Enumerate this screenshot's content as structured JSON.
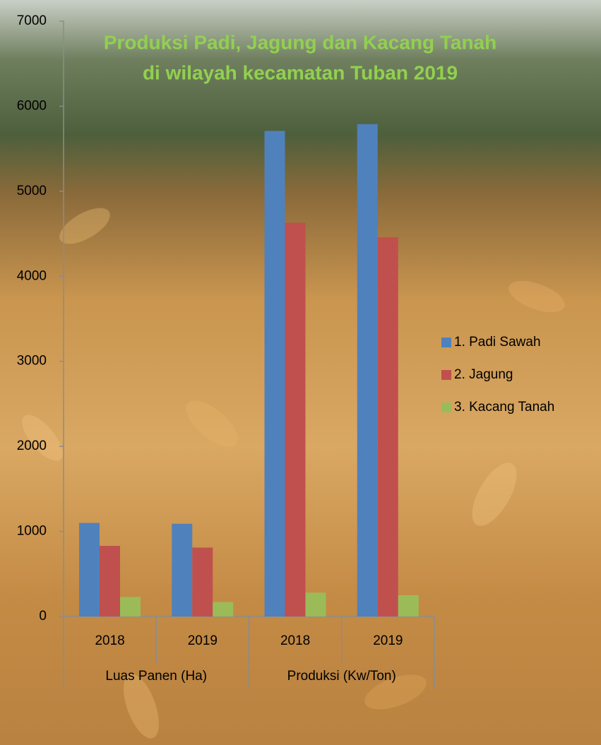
{
  "chart_data": {
    "type": "bar",
    "title": "Produksi Padi, Jagung dan Kacang Tanah",
    "subtitle": "di wilayah kecamatan Tuban 2019",
    "category_groups": [
      {
        "name": "Luas Panen (Ha)",
        "categories": [
          "2018",
          "2019"
        ]
      },
      {
        "name": "Produksi (Kw/Ton)",
        "categories": [
          "2018",
          "2019"
        ]
      }
    ],
    "series": [
      {
        "name": "1. Padi Sawah",
        "color": "#4f81bd",
        "values": [
          1100,
          1090,
          5710,
          5790
        ]
      },
      {
        "name": "2. Jagung",
        "color": "#c0504d",
        "values": [
          830,
          810,
          4630,
          4460
        ]
      },
      {
        "name": "3. Kacang Tanah",
        "color": "#9bbb59",
        "values": [
          230,
          170,
          280,
          250
        ]
      }
    ],
    "ylim": [
      0,
      7000
    ],
    "yticks": [
      0,
      1000,
      2000,
      3000,
      4000,
      5000,
      6000,
      7000
    ],
    "grid": false,
    "legend": "right"
  }
}
